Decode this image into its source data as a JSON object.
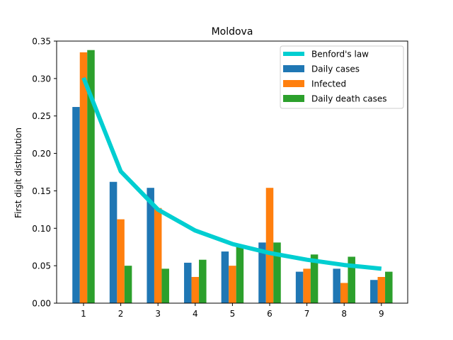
{
  "chart_data": {
    "type": "bar",
    "title": "Moldova",
    "xlabel": "",
    "ylabel": "First digit distribution",
    "categories": [
      "1",
      "2",
      "3",
      "4",
      "5",
      "6",
      "7",
      "8",
      "9"
    ],
    "ylim": [
      0,
      0.35
    ],
    "yticks": [
      "0.00",
      "0.05",
      "0.10",
      "0.15",
      "0.20",
      "0.25",
      "0.30",
      "0.35"
    ],
    "grid": false,
    "legend_position": "top-right",
    "series": [
      {
        "name": "Daily cases",
        "kind": "bar",
        "color": "#1f77b4",
        "values": [
          0.262,
          0.162,
          0.154,
          0.054,
          0.069,
          0.081,
          0.042,
          0.046,
          0.031
        ]
      },
      {
        "name": "Infected",
        "kind": "bar",
        "color": "#ff7f0e",
        "values": [
          0.335,
          0.112,
          0.127,
          0.035,
          0.05,
          0.154,
          0.046,
          0.027,
          0.035
        ]
      },
      {
        "name": "Daily death cases",
        "kind": "bar",
        "color": "#2ca02c",
        "values": [
          0.338,
          0.05,
          0.046,
          0.058,
          0.077,
          0.081,
          0.065,
          0.062,
          0.042
        ]
      }
    ],
    "line": {
      "name": "Benford's law",
      "kind": "line",
      "color": "#00ced1",
      "values": [
        0.301,
        0.176,
        0.125,
        0.097,
        0.079,
        0.067,
        0.058,
        0.051,
        0.046
      ]
    }
  }
}
